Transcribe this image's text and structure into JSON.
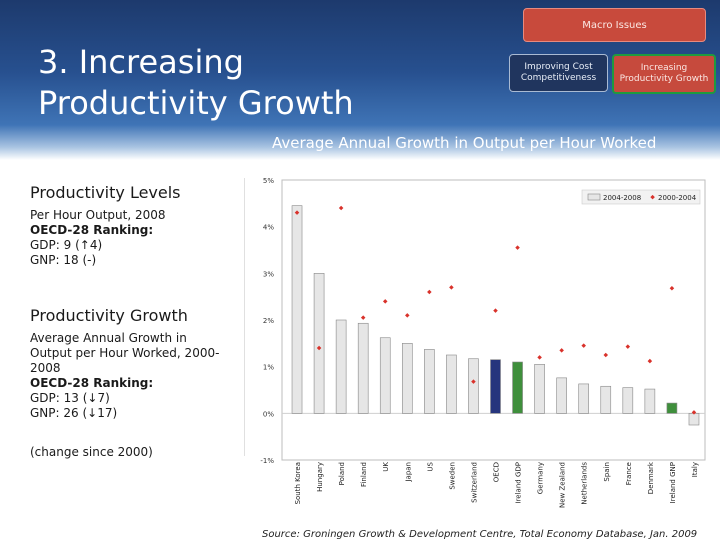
{
  "slide": {
    "title_line1": "3. Increasing",
    "title_line2": "Productivity Growth",
    "chart_title": "Average Annual Growth in Output per Hour Worked",
    "source": "Source: Groningen Growth & Development Centre, Total Economy Database, Jan. 2009"
  },
  "nav": {
    "macro": "Macro Issues",
    "cost_line1": "Improving Cost",
    "cost_line2": "Competitiveness",
    "prod_line1": "Increasing",
    "prod_line2": "Productivity Growth"
  },
  "sidebar": {
    "levels_heading": "Productivity Levels",
    "levels_l1": "Per Hour Output, 2008",
    "levels_l2": "OECD-28 Ranking:",
    "levels_l3": "GDP: 9 (↑4)",
    "levels_l4": "GNP: 18 (-)",
    "growth_heading": "Productivity Growth",
    "growth_l1": "Average Annual Growth in",
    "growth_l2": "Output per Hour Worked, 2000-",
    "growth_l3": "2008",
    "growth_l4": "OECD-28 Ranking:",
    "growth_l5": "GDP: 13 (↓7)",
    "growth_l6": "GNP: 26 (↓17)",
    "note": "(change since 2000)"
  },
  "chart_data": {
    "type": "bar",
    "categories": [
      "South Korea",
      "Hungary",
      "Poland",
      "Finland",
      "UK",
      "Japan",
      "US",
      "Sweden",
      "Switzerland",
      "OECD",
      "Ireland GDP",
      "Germany",
      "New Zealand",
      "Netherlands",
      "Spain",
      "France",
      "Denmark",
      "Ireland GNP",
      "Italy"
    ],
    "series": [
      {
        "name": "2004-2008",
        "kind": "bar",
        "values": [
          4.45,
          3.0,
          2.0,
          1.93,
          1.62,
          1.5,
          1.37,
          1.25,
          1.17,
          1.15,
          1.1,
          1.05,
          0.76,
          0.63,
          0.58,
          0.55,
          0.52,
          0.22,
          -0.25
        ]
      },
      {
        "name": "2000-2004",
        "kind": "marker",
        "values": [
          4.3,
          1.4,
          4.4,
          2.05,
          2.4,
          2.1,
          2.6,
          2.7,
          0.68,
          2.2,
          3.55,
          1.2,
          1.35,
          1.45,
          1.25,
          1.43,
          1.12,
          2.68,
          0.02
        ]
      }
    ],
    "yticks": [
      "5%",
      "4%",
      "3%",
      "2%",
      "1%",
      "0%",
      "-1%"
    ],
    "ylim": [
      -1,
      5
    ],
    "legend_position": "top-right",
    "colors": {
      "bar_default": "#e6e6e6",
      "bar_oecd": "#26357d",
      "bar_ireland_gdp": "#3f8f3c",
      "bar_ireland_gnp": "#3f8f3c",
      "marker": "#d9322b"
    }
  }
}
